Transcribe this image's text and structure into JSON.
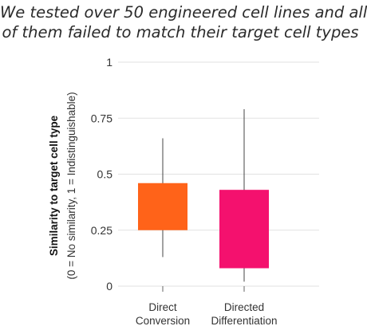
{
  "headline": {
    "line1": "We tested over 50 engineered cell lines and all",
    "line2": "of them failed to match their target cell types"
  },
  "chart_data": {
    "type": "box",
    "title": "We tested over 50 engineered cell lines and all of them failed to match their target cell types",
    "ylabel": "Similarity to target cell type",
    "ylabel_sub": "(0 = No similarity, 1 = Indistinguishable)",
    "ylim": [
      0,
      1
    ],
    "yticks": [
      "0",
      "0.25",
      "0.5",
      "0.75",
      "1"
    ],
    "ytick_values": [
      0,
      0.25,
      0.5,
      0.75,
      1
    ],
    "grid": true,
    "categories": [
      {
        "lines": [
          "Direct",
          "Conversion"
        ]
      },
      {
        "lines": [
          "Directed",
          "Differentiation"
        ]
      }
    ],
    "boxes": [
      {
        "category": "Direct Conversion",
        "whisker_low": 0.13,
        "q1": 0.25,
        "q3": 0.46,
        "whisker_high": 0.66,
        "color": "#ff6319"
      },
      {
        "category": "Directed Differentiation",
        "whisker_low": 0.02,
        "q1": 0.08,
        "q3": 0.43,
        "whisker_high": 0.79,
        "color": "#f4116e"
      }
    ]
  }
}
